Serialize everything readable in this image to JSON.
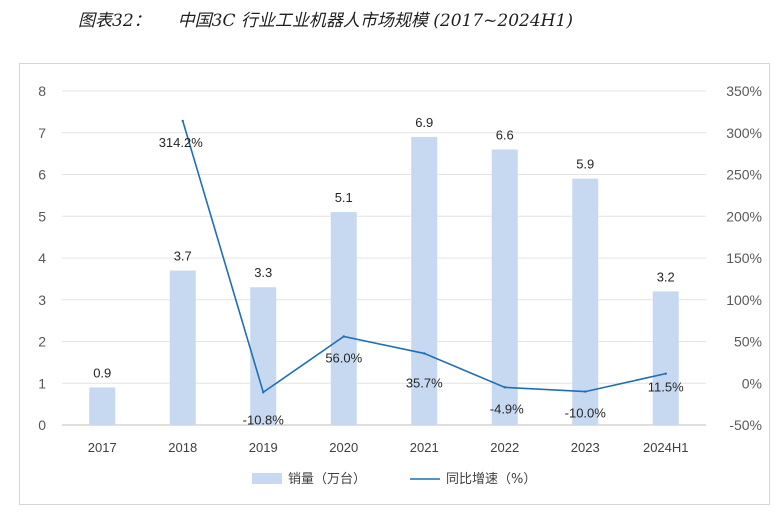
{
  "title": "图表32：     中国3C 行业工业机器人市场规模 (2017~2024H1)",
  "chart_data": {
    "type": "bar",
    "categories": [
      "2017",
      "2018",
      "2019",
      "2020",
      "2021",
      "2022",
      "2023",
      "2024H1"
    ],
    "series": [
      {
        "name": "销量（万台）",
        "type": "bar",
        "axis": "left",
        "color": "#c6d9f1",
        "values": [
          0.9,
          3.7,
          3.3,
          5.1,
          6.9,
          6.6,
          5.9,
          3.2
        ],
        "labels": [
          "0.9",
          "3.7",
          "3.3",
          "5.1",
          "6.9",
          "6.6",
          "5.9",
          "3.2"
        ]
      },
      {
        "name": "同比增速（%）",
        "type": "line",
        "axis": "right",
        "color": "#1f6fb5",
        "values": [
          null,
          314.2,
          -10.8,
          56.0,
          35.7,
          -4.9,
          -10.0,
          11.5
        ],
        "labels": [
          "",
          "314.2%",
          "-10.8%",
          "56.0%",
          "35.7%",
          "-4.9%",
          "-10.0%",
          "11.5%"
        ]
      }
    ],
    "y_left": {
      "ylim": [
        0,
        8
      ],
      "ticks": [
        "0",
        "1",
        "2",
        "3",
        "4",
        "5",
        "6",
        "7",
        "8"
      ]
    },
    "y_right": {
      "ylim": [
        -50,
        350
      ],
      "ticks": [
        "-50%",
        "0%",
        "50%",
        "100%",
        "150%",
        "200%",
        "250%",
        "300%",
        "350%"
      ]
    },
    "grid": "horizontal",
    "legend": "bottom-center"
  }
}
